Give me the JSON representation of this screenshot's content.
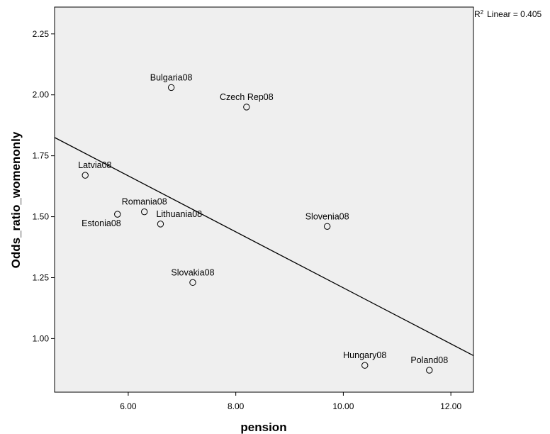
{
  "chart_data": {
    "type": "scatter",
    "xlabel": "pension",
    "ylabel": "Odds_ratio_womenonly",
    "xlim": [
      4.63,
      12.42
    ],
    "ylim": [
      0.78,
      2.36
    ],
    "xticks": [
      6.0,
      8.0,
      10.0,
      12.0
    ],
    "xtick_labels": [
      "6.00",
      "8.00",
      "10.00",
      "12.00"
    ],
    "yticks": [
      1.0,
      1.25,
      1.5,
      1.75,
      2.0,
      2.25
    ],
    "ytick_labels": [
      "1.00",
      "1.25",
      "1.50",
      "1.75",
      "2.00",
      "2.25"
    ],
    "points": [
      {
        "label": "Bulgaria08",
        "x": 6.8,
        "y": 2.03
      },
      {
        "label": "Czech Rep08",
        "x": 8.2,
        "y": 1.95
      },
      {
        "label": "Latvia08",
        "x": 5.2,
        "y": 1.67
      },
      {
        "label": "Romania08",
        "x": 6.3,
        "y": 1.52
      },
      {
        "label": "Estonia08",
        "x": 5.8,
        "y": 1.51
      },
      {
        "label": "Lithuania08",
        "x": 6.6,
        "y": 1.47
      },
      {
        "label": "Slovenia08",
        "x": 9.7,
        "y": 1.46
      },
      {
        "label": "Slovakia08",
        "x": 7.2,
        "y": 1.23
      },
      {
        "label": "Hungary08",
        "x": 10.4,
        "y": 0.89
      },
      {
        "label": "Poland08",
        "x": 11.6,
        "y": 0.87
      }
    ],
    "fit_line": {
      "type": "linear",
      "x": [
        4.63,
        12.42
      ],
      "y": [
        1.825,
        0.93
      ]
    },
    "r2_label": "Linear = 0.405",
    "r2_prefix": "R",
    "r2_sup": "2",
    "grid": false,
    "background": "#efefef"
  }
}
